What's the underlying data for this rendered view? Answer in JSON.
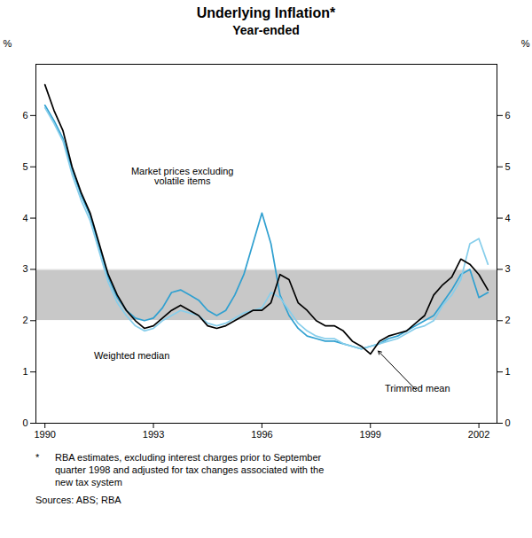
{
  "chart_data": {
    "type": "line",
    "title": "Underlying Inflation*",
    "subtitle": "Year-ended",
    "ylabel": "%",
    "y2label": "%",
    "xlim": [
      1989.75,
      2002.5
    ],
    "xticks": [
      1990,
      1993,
      1996,
      1999,
      2002
    ],
    "ylim": [
      0,
      7
    ],
    "yticks": [
      0,
      1,
      2,
      3,
      4,
      5,
      6
    ],
    "y2lim": [
      0,
      7
    ],
    "y2ticks": [
      0,
      1,
      2,
      3,
      4,
      5,
      6
    ],
    "grid": true,
    "band": {
      "lower": 2,
      "upper": 3,
      "color": "#c8c8c8"
    },
    "x": [
      1990.0,
      1990.25,
      1990.5,
      1990.75,
      1991.0,
      1991.25,
      1991.5,
      1991.75,
      1992.0,
      1992.25,
      1992.5,
      1992.75,
      1993.0,
      1993.25,
      1993.5,
      1993.75,
      1994.0,
      1994.25,
      1994.5,
      1994.75,
      1995.0,
      1995.25,
      1995.5,
      1995.75,
      1996.0,
      1996.25,
      1996.5,
      1996.75,
      1997.0,
      1997.25,
      1997.5,
      1997.75,
      1998.0,
      1998.25,
      1998.5,
      1998.75,
      1999.0,
      1999.25,
      1999.5,
      1999.75,
      2000.0,
      2000.25,
      2000.5,
      2000.75,
      2001.0,
      2001.25,
      2001.5,
      2001.75,
      2002.0,
      2002.25
    ],
    "series": [
      {
        "name": "Market prices excluding\nvolatile items",
        "color": "#30a0d0",
        "values": [
          6.2,
          5.9,
          5.55,
          4.95,
          4.45,
          4.05,
          3.45,
          2.85,
          2.45,
          2.2,
          2.05,
          2.0,
          2.05,
          2.25,
          2.55,
          2.6,
          2.5,
          2.4,
          2.2,
          2.1,
          2.2,
          2.5,
          2.9,
          3.5,
          4.1,
          3.5,
          2.5,
          2.1,
          1.85,
          1.7,
          1.65,
          1.6,
          1.6,
          1.55,
          1.5,
          1.45,
          1.5,
          1.55,
          1.65,
          1.7,
          1.8,
          1.9,
          2.0,
          2.1,
          2.35,
          2.6,
          2.9,
          3.0,
          2.45,
          2.55
        ]
      },
      {
        "name": "Trimmed mean",
        "color": "#87CEEB",
        "values": [
          6.15,
          5.85,
          5.5,
          4.85,
          4.35,
          3.95,
          3.35,
          2.75,
          2.35,
          2.1,
          1.9,
          1.8,
          1.85,
          2.0,
          2.1,
          2.2,
          2.15,
          2.1,
          1.95,
          1.9,
          1.95,
          2.05,
          2.15,
          2.2,
          2.25,
          2.55,
          2.45,
          2.2,
          1.95,
          1.8,
          1.7,
          1.65,
          1.65,
          1.55,
          1.5,
          1.45,
          1.5,
          1.55,
          1.6,
          1.65,
          1.75,
          1.85,
          1.9,
          2.0,
          2.3,
          2.5,
          2.8,
          3.5,
          3.6,
          3.1
        ]
      },
      {
        "name": "Weighted median",
        "color": "#000000",
        "values": [
          6.6,
          6.1,
          5.7,
          5.0,
          4.5,
          4.1,
          3.5,
          2.9,
          2.5,
          2.2,
          2.0,
          1.85,
          1.9,
          2.05,
          2.2,
          2.3,
          2.2,
          2.1,
          1.9,
          1.85,
          1.9,
          2.0,
          2.1,
          2.2,
          2.2,
          2.35,
          2.9,
          2.8,
          2.35,
          2.2,
          2.0,
          1.9,
          1.9,
          1.8,
          1.6,
          1.5,
          1.35,
          1.6,
          1.7,
          1.75,
          1.8,
          1.95,
          2.1,
          2.5,
          2.7,
          2.85,
          3.2,
          3.1,
          2.9,
          2.6
        ]
      }
    ],
    "annotations": [
      {
        "text": "Market prices excluding\nvolatile items",
        "x": 1993.8,
        "y": 4.65
      },
      {
        "text": "Weighted median",
        "x": 1992.4,
        "y": 1.25
      },
      {
        "text": "Trimmed mean",
        "x": 2000.3,
        "y": 0.62,
        "arrow_to": [
          1999.2,
          1.42
        ]
      }
    ],
    "footnote_marker": "*",
    "footnote": "RBA estimates, excluding interest charges prior to September\nquarter 1998 and adjusted for tax changes associated with the\nnew tax system",
    "source": "Sources: ABS; RBA"
  }
}
